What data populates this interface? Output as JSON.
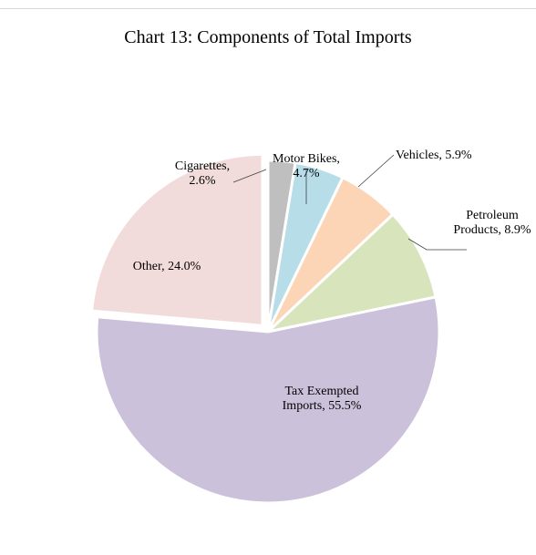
{
  "chart_data": {
    "type": "pie",
    "title": "Chart 13: Components of Total Imports",
    "slices": [
      {
        "label_lines": [
          "Cigarettes,",
          "2.6%"
        ],
        "name": "Cigarettes",
        "value": 2.6,
        "color": "#bfbfbf"
      },
      {
        "label_lines": [
          "Motor Bikes,",
          "4.7%"
        ],
        "name": "Motor Bikes",
        "value": 4.7,
        "color": "#b7dde8"
      },
      {
        "label_lines": [
          "Vehicles, 5.9%"
        ],
        "name": "Vehicles",
        "value": 5.9,
        "color": "#fbd5b5"
      },
      {
        "label_lines": [
          "Petroleum",
          "Products, 8.9%"
        ],
        "name": "Petroleum Products",
        "value": 8.9,
        "color": "#d7e4bc"
      },
      {
        "label_lines": [
          "Tax Exempted",
          "Imports, 55.5%"
        ],
        "name": "Tax Exempted Imports",
        "value": 55.5,
        "color": "#ccc1da"
      },
      {
        "label_lines": [
          "Other, 24.0%"
        ],
        "name": "Other",
        "value": 24.0,
        "color": "#f2dcdb"
      }
    ]
  }
}
